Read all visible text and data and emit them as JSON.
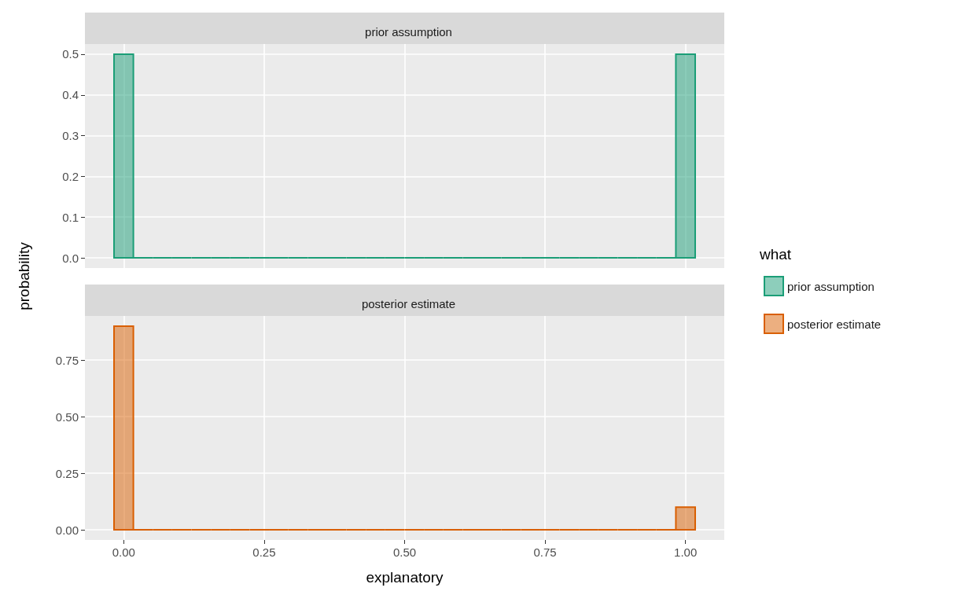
{
  "chart_data": [
    {
      "type": "histogram",
      "title": "prior assumption",
      "ylabel": "probability",
      "legend_title": "what",
      "legend": "right",
      "bins": [
        -0.0172,
        0.0172,
        0.0517,
        0.0862,
        0.1207,
        0.1552,
        0.1897,
        0.2241,
        0.2586,
        0.2931,
        0.3276,
        0.3621,
        0.3966,
        0.431,
        0.4655,
        0.5,
        0.5345,
        0.569,
        0.6034,
        0.6379,
        0.6724,
        0.7069,
        0.7414,
        0.7759,
        0.8103,
        0.8448,
        0.8793,
        0.9138,
        0.9483,
        0.9828,
        1.0172
      ],
      "series": [
        {
          "name": "prior assumption",
          "color": "#1b9e77",
          "values": [
            0.5,
            0,
            0,
            0,
            0,
            0,
            0,
            0,
            0,
            0,
            0,
            0,
            0,
            0,
            0,
            0,
            0,
            0,
            0,
            0,
            0,
            0,
            0,
            0,
            0,
            0,
            0,
            0,
            0,
            0.5
          ]
        }
      ],
      "xlim": [
        -0.069,
        1.069
      ],
      "xticks": [
        0,
        0.25,
        0.5,
        0.75,
        1
      ],
      "ylim": [
        -0.025,
        0.525
      ],
      "yticks": [
        {
          "value": 0,
          "label": "0.0"
        },
        {
          "value": 0.1,
          "label": "0.1"
        },
        {
          "value": 0.2,
          "label": "0.2"
        },
        {
          "value": 0.3,
          "label": "0.3"
        },
        {
          "value": 0.4,
          "label": "0.4"
        },
        {
          "value": 0.5,
          "label": "0.5"
        }
      ],
      "grid": true,
      "tick_labels": "y"
    },
    {
      "type": "histogram",
      "title": "posterior estimate",
      "xlabel": "explanatory",
      "legend": "right",
      "bins": [
        -0.0172,
        0.0172,
        0.0517,
        0.0862,
        0.1207,
        0.1552,
        0.1897,
        0.2241,
        0.2586,
        0.2931,
        0.3276,
        0.3621,
        0.3966,
        0.431,
        0.4655,
        0.5,
        0.5345,
        0.569,
        0.6034,
        0.6379,
        0.6724,
        0.7069,
        0.7414,
        0.7759,
        0.8103,
        0.8448,
        0.8793,
        0.9138,
        0.9483,
        0.9828,
        1.0172
      ],
      "series": [
        {
          "name": "posterior estimate",
          "color": "#d95f02",
          "values": [
            0.9,
            0,
            0,
            0,
            0,
            0,
            0,
            0,
            0,
            0,
            0,
            0,
            0,
            0,
            0,
            0,
            0,
            0,
            0,
            0,
            0,
            0,
            0,
            0,
            0,
            0,
            0,
            0,
            0,
            0.1
          ]
        }
      ],
      "xlim": [
        -0.069,
        1.069
      ],
      "xticks": [
        {
          "value": 0,
          "label": "0.00"
        },
        {
          "value": 0.25,
          "label": "0.25"
        },
        {
          "value": 0.5,
          "label": "0.50"
        },
        {
          "value": 0.75,
          "label": "0.75"
        },
        {
          "value": 1,
          "label": "1.00"
        }
      ],
      "ylim": [
        -0.045,
        0.945
      ],
      "yticks": [
        {
          "value": 0,
          "label": "0.00"
        },
        {
          "value": 0.25,
          "label": "0.25"
        },
        {
          "value": 0.5,
          "label": "0.50"
        },
        {
          "value": 0.75,
          "label": "0.75"
        }
      ],
      "grid": true
    }
  ]
}
